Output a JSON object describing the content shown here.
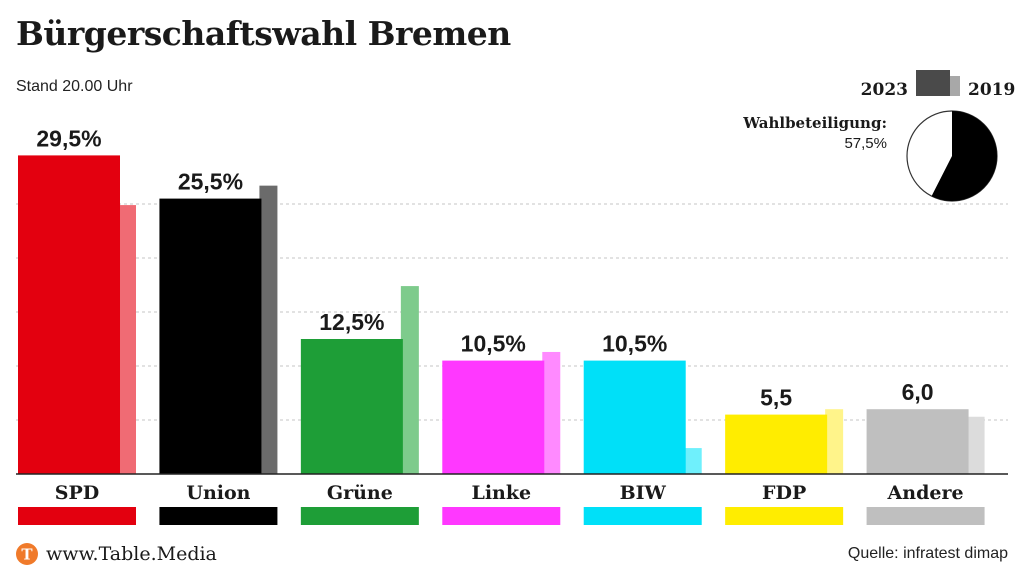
{
  "header": {
    "title": "Bürgerschaftswahl Bremen",
    "subtitle": "Stand 20.00 Uhr"
  },
  "footer": {
    "url": "www.Table.Media",
    "source": "Quelle: infratest dimap",
    "logo_letter": "T",
    "logo_color": "#f07a2a"
  },
  "legend": {
    "current_label": "2023",
    "previous_label": "2019",
    "current_color": "#4a4a4a",
    "previous_color": "#a8a8a8"
  },
  "turnout": {
    "label": "Wahlbeteiligung:",
    "value_label": "57,5%",
    "value": 57.5
  },
  "chart_data": {
    "type": "bar",
    "title": "Bürgerschaftswahl Bremen",
    "ylim": [
      0,
      30
    ],
    "grid": true,
    "legend_position": "top-right",
    "categories": [
      "SPD",
      "Union",
      "Grüne",
      "Linke",
      "BIW",
      "FDP",
      "Andere"
    ],
    "series": [
      {
        "name": "2023",
        "values": [
          29.5,
          25.5,
          12.5,
          10.5,
          10.5,
          5.5,
          6.0
        ],
        "labels": [
          "29,5%",
          "25,5%",
          "12,5%",
          "10,5%",
          "10,5%",
          "5,5",
          "6,0"
        ]
      },
      {
        "name": "2019",
        "values": [
          24.9,
          26.7,
          17.4,
          11.3,
          2.4,
          6.0,
          5.3
        ]
      }
    ],
    "colors": {
      "current": [
        "#e3000f",
        "#000000",
        "#1e9e37",
        "#ff38ff",
        "#00e0f8",
        "#ffed00",
        "#bfbfbf"
      ],
      "previous": [
        "#f06b74",
        "#6b6b6b",
        "#7ecb8c",
        "#ff8aff",
        "#6ff0fc",
        "#fff48a",
        "#dcdcdc"
      ]
    }
  }
}
